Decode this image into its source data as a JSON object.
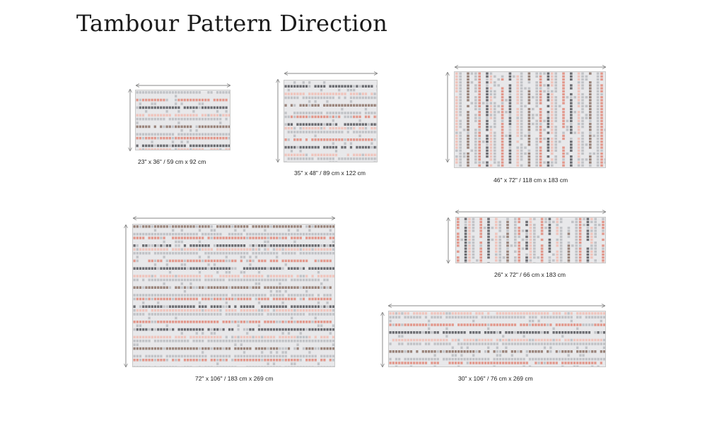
{
  "title": "Tambour Pattern Direction",
  "colors": {
    "base": "#e8e8ea",
    "grey": "#b9bbc0",
    "dark": "#55565c",
    "coral": "#e0887a",
    "pink": "#f0bdb4",
    "brown": "#8b7166",
    "dimension_line": "#888888"
  },
  "rugs": [
    {
      "id": "rug-23x36",
      "label": "23\" x 36\" / 59 cm x 92 cm",
      "stripe_direction": "horizontal"
    },
    {
      "id": "rug-35x48",
      "label": "35\" x 48\" / 89 cm x 122 cm",
      "stripe_direction": "horizontal"
    },
    {
      "id": "rug-46x72",
      "label": "46\" x 72\" / 118 cm x 183 cm",
      "stripe_direction": "vertical"
    },
    {
      "id": "rug-72x106",
      "label": "72\" x 106\" / 183 cm x 269 cm",
      "stripe_direction": "horizontal"
    },
    {
      "id": "rug-26x72",
      "label": "26\" x 72\" / 66 cm x 183 cm",
      "stripe_direction": "vertical"
    },
    {
      "id": "rug-30x106",
      "label": "30\" x 106\" / 76 cm x 269 cm",
      "stripe_direction": "horizontal"
    }
  ]
}
